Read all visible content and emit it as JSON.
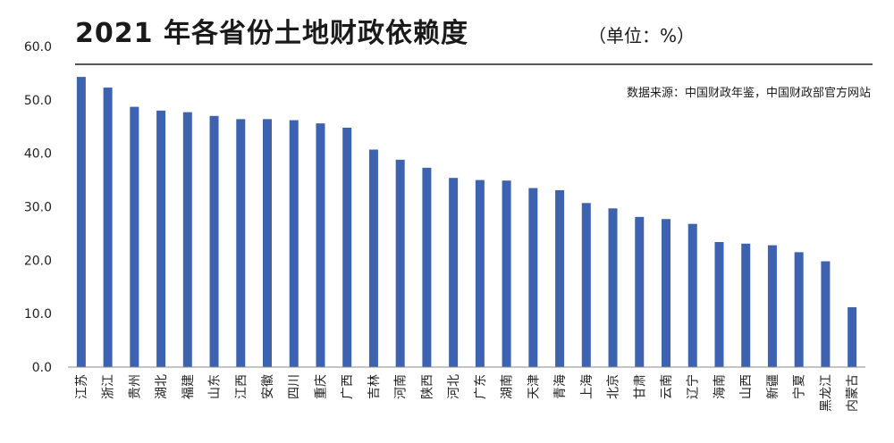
{
  "chart_data": {
    "type": "bar",
    "title": "2021 年各省份土地财政依赖度",
    "unit": "（单位：%）",
    "source": "数据来源：中国财政年鉴，中国财政部官方网站",
    "categories": [
      "江苏",
      "浙江",
      "贵州",
      "湖北",
      "福建",
      "山东",
      "江西",
      "安徽",
      "四川",
      "重庆",
      "广西",
      "吉林",
      "河南",
      "陕西",
      "河北",
      "广东",
      "湖南",
      "天津",
      "青海",
      "上海",
      "北京",
      "甘肃",
      "云南",
      "辽宁",
      "海南",
      "山西",
      "新疆",
      "宁夏",
      "黑龙江",
      "内蒙古"
    ],
    "values": [
      54.3,
      52.3,
      48.7,
      48.0,
      47.7,
      47.0,
      46.4,
      46.4,
      46.2,
      45.6,
      44.8,
      40.7,
      38.8,
      37.3,
      35.4,
      35.0,
      34.9,
      33.5,
      33.1,
      30.7,
      29.7,
      28.1,
      27.7,
      26.8,
      23.4,
      23.1,
      22.8,
      21.5,
      19.8,
      11.2
    ],
    "ylim": [
      0,
      60
    ],
    "yticks": [
      "0.0",
      "10.0",
      "20.0",
      "30.0",
      "40.0",
      "50.0",
      "60.0"
    ],
    "bar_color": "#3d63b0",
    "grid": false
  }
}
